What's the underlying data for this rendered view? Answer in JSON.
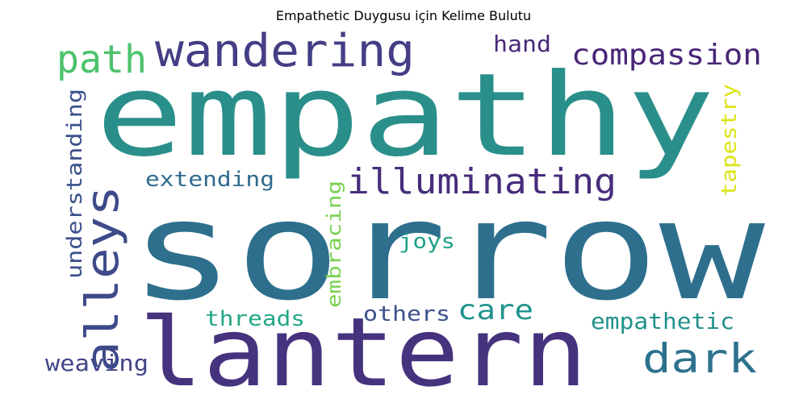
{
  "title": "Empathetic Duygusu için Kelime Bulutu",
  "words": [
    {
      "text": "empathy",
      "color": "#2a8f8a"
    },
    {
      "text": "sorrow",
      "color": "#2e6f8e"
    },
    {
      "text": "lantern",
      "color": "#46337e"
    },
    {
      "text": "wandering",
      "color": "#433e85"
    },
    {
      "text": "path",
      "color": "#4cc26c"
    },
    {
      "text": "compassion",
      "color": "#482677"
    },
    {
      "text": "hand",
      "color": "#482878"
    },
    {
      "text": "illuminating",
      "color": "#472d7b"
    },
    {
      "text": "extending",
      "color": "#306a8e"
    },
    {
      "text": "alleys",
      "color": "#3e4a89"
    },
    {
      "text": "understanding",
      "color": "#3b518b"
    },
    {
      "text": "tapestry",
      "color": "#dde318"
    },
    {
      "text": "embracing",
      "color": "#7ad151"
    },
    {
      "text": "joys",
      "color": "#1fa187"
    },
    {
      "text": "threads",
      "color": "#21a685"
    },
    {
      "text": "others",
      "color": "#3b528b"
    },
    {
      "text": "care",
      "color": "#20928c"
    },
    {
      "text": "empathetic",
      "color": "#21918c"
    },
    {
      "text": "dark",
      "color": "#2c728e"
    },
    {
      "text": "weaving",
      "color": "#414487"
    }
  ]
}
